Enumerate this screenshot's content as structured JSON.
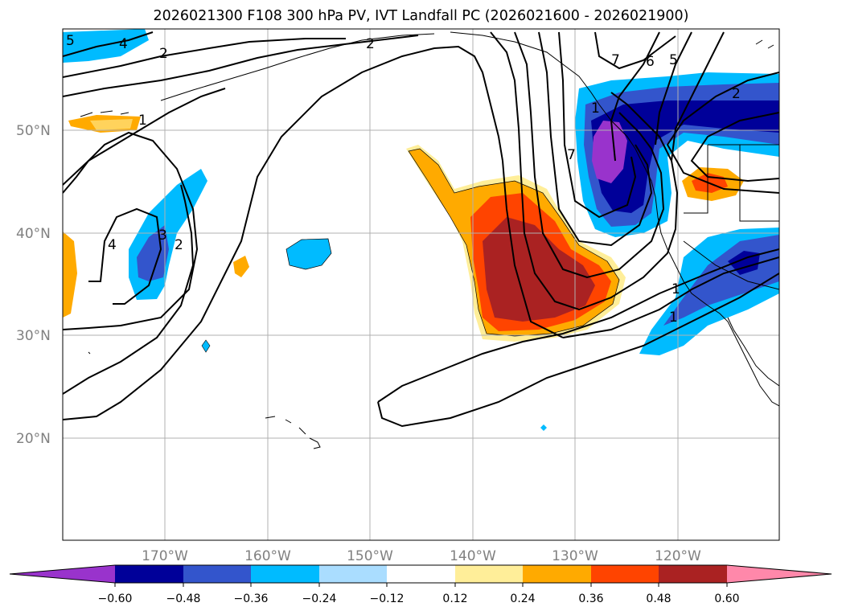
{
  "title": "2026021300 F108 300 hPa PV, IVT Landfall PC (2026021600 - 2026021900)",
  "map": {
    "lon_labels": [
      "170°W",
      "160°W",
      "150°W",
      "140°W",
      "130°W",
      "120°W"
    ],
    "lat_labels": [
      "50°N",
      "40°N",
      "30°N",
      "20°N"
    ],
    "contour_labels": [
      "5",
      "4",
      "2",
      "2",
      "1",
      "7",
      "6",
      "5",
      "2",
      "1",
      "4",
      "3",
      "2",
      "7",
      "1",
      "1"
    ]
  },
  "colorbar": {
    "ticks": [
      "−0.60",
      "−0.48",
      "−0.36",
      "−0.24",
      "−0.12",
      "0.12",
      "0.24",
      "0.36",
      "0.48",
      "0.60"
    ],
    "colors": [
      "#9933cc",
      "#000099",
      "#3355cc",
      "#00bbff",
      "#aaddff",
      "#ffffff",
      "#ffee99",
      "#ffaa00",
      "#ff4400",
      "#aa2222",
      "#ff88aa"
    ]
  }
}
